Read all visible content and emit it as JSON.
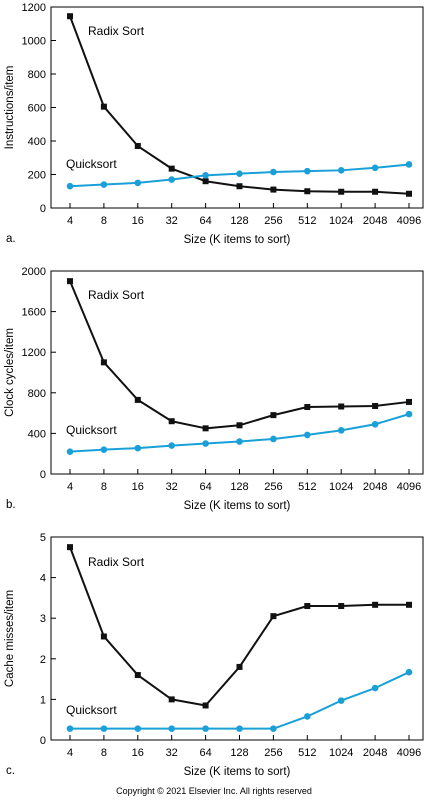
{
  "copyright": "Copyright © 2021 Elsevier Inc. All rights reserved",
  "colors": {
    "radix": "#111111",
    "quicksort": "#1aa0d8",
    "axis": "#000000"
  },
  "chart_data": [
    {
      "type": "line",
      "panel_label": "a.",
      "xlabel": "Size (K items to sort)",
      "ylabel": "Instructions/item",
      "categories": [
        "4",
        "8",
        "16",
        "32",
        "64",
        "128",
        "256",
        "512",
        "1024",
        "2048",
        "4096"
      ],
      "ylim": [
        0,
        1200
      ],
      "yticks": [
        0,
        200,
        400,
        600,
        800,
        1000,
        1200
      ],
      "ytick_labels": [
        "0",
        "200",
        "400",
        "600",
        "800",
        "1000",
        "1200"
      ],
      "grid": false,
      "series": [
        {
          "name": "Radix Sort",
          "marker": "square",
          "values": [
            1145,
            605,
            370,
            235,
            160,
            130,
            110,
            100,
            97,
            97,
            85
          ]
        },
        {
          "name": "Quicksort",
          "marker": "circle",
          "values": [
            130,
            140,
            150,
            170,
            195,
            205,
            215,
            220,
            225,
            240,
            260
          ]
        }
      ]
    },
    {
      "type": "line",
      "panel_label": "b.",
      "xlabel": "Size (K items to sort)",
      "ylabel": "Clock cycles/item",
      "categories": [
        "4",
        "8",
        "16",
        "32",
        "64",
        "128",
        "256",
        "512",
        "1024",
        "2048",
        "4096"
      ],
      "ylim": [
        0,
        2000
      ],
      "yticks": [
        0,
        400,
        800,
        1200,
        1600,
        2000
      ],
      "ytick_labels": [
        "0",
        "400",
        "800",
        "1200",
        "1600",
        "2000"
      ],
      "grid": false,
      "series": [
        {
          "name": "Radix Sort",
          "marker": "square",
          "values": [
            1900,
            1100,
            730,
            520,
            450,
            480,
            580,
            660,
            665,
            670,
            710
          ]
        },
        {
          "name": "Quicksort",
          "marker": "circle",
          "values": [
            220,
            240,
            255,
            280,
            300,
            320,
            345,
            385,
            430,
            490,
            590
          ]
        }
      ]
    },
    {
      "type": "line",
      "panel_label": "c.",
      "xlabel": "Size (K items to sort)",
      "ylabel": "Cache misses/item",
      "categories": [
        "4",
        "8",
        "16",
        "32",
        "64",
        "128",
        "256",
        "512",
        "1024",
        "2048",
        "4096"
      ],
      "ylim": [
        0,
        5
      ],
      "yticks": [
        0,
        1,
        2,
        3,
        4,
        5
      ],
      "ytick_labels": [
        "0",
        "1",
        "2",
        "3",
        "4",
        "5"
      ],
      "grid": false,
      "series": [
        {
          "name": "Radix Sort",
          "marker": "square",
          "values": [
            4.75,
            2.55,
            1.6,
            1.0,
            0.85,
            1.8,
            3.05,
            3.3,
            3.3,
            3.33,
            3.33
          ]
        },
        {
          "name": "Quicksort",
          "marker": "circle",
          "values": [
            0.28,
            0.28,
            0.28,
            0.28,
            0.28,
            0.28,
            0.28,
            0.58,
            0.97,
            1.28,
            1.67
          ]
        }
      ]
    }
  ]
}
